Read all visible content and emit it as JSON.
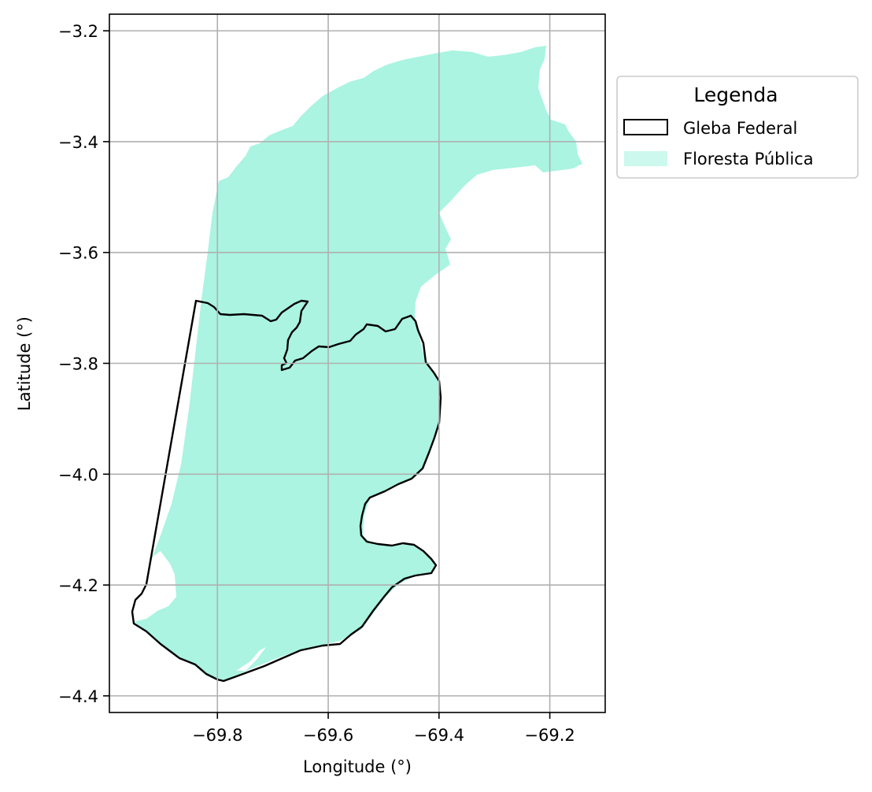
{
  "map": {
    "xlabel": "Longitude (°)",
    "ylabel": "Latitude (°)",
    "x_ticks": [
      {
        "value": -69.8,
        "label": "−69.8"
      },
      {
        "value": -69.6,
        "label": "−69.6"
      },
      {
        "value": -69.4,
        "label": "−69.4"
      },
      {
        "value": -69.2,
        "label": "−69.2"
      }
    ],
    "y_ticks": [
      {
        "value": -3.2,
        "label": "−3.2"
      },
      {
        "value": -3.4,
        "label": "−3.4"
      },
      {
        "value": -3.6,
        "label": "−3.6"
      },
      {
        "value": -3.8,
        "label": "−3.8"
      },
      {
        "value": -4.0,
        "label": "−4.0"
      },
      {
        "value": -4.2,
        "label": "−4.2"
      },
      {
        "value": -4.4,
        "label": "−4.4"
      }
    ],
    "xlim": [
      -69.995,
      -69.1
    ],
    "ylim": [
      -4.43,
      -3.17
    ],
    "grid": true,
    "legend": {
      "title": "Legenda",
      "placement": "outside-right-top",
      "entries": [
        {
          "label": "Gleba Federal",
          "style": "outline",
          "color": "#000000"
        },
        {
          "label": "Floresta Pública",
          "style": "fill",
          "color": "#aaf4e1"
        }
      ]
    },
    "colors": {
      "forest_fill": "#aaf4e1",
      "gleba_outline": "#000000",
      "grid": "#b0b0b0"
    }
  }
}
